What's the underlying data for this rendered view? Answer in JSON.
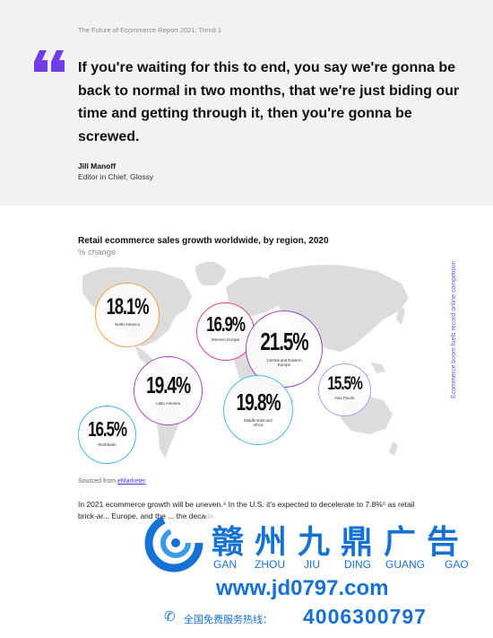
{
  "quote_section": {
    "report_label": "The Future of Ecommerce Report 2021: Trend 1",
    "quote": "If you're waiting for this to end, you say we're gonna be back to normal in two months, that we're just biding our time and getting through it, then you're gonna be screwed.",
    "author_name": "Jill Manoff",
    "author_role": "Editor in Chief, Glossy",
    "quote_icon": "quote-mark-icon",
    "accent_color": "#6f3ee8"
  },
  "chart_data": {
    "type": "bubble-map",
    "title": "Retail ecommerce sales growth worldwide, by region, 2020",
    "subtitle": "% change",
    "unit": "%",
    "series": [
      {
        "region": "North America",
        "value": 18.1,
        "label": "18.1%",
        "color": "#f5a447"
      },
      {
        "region": "Western Europe",
        "value": 16.9,
        "label": "16.9%",
        "color": "#e63c8c"
      },
      {
        "region": "Central and Eastern Europe",
        "value": 21.5,
        "label": "21.5%",
        "color": "#8e44c9"
      },
      {
        "region": "Latin America",
        "value": 19.4,
        "label": "19.4%",
        "color": "#a63fb9"
      },
      {
        "region": "Middle East and Africa",
        "value": 19.8,
        "label": "19.8%",
        "color": "#45b8e6"
      },
      {
        "region": "Asia Pacific",
        "value": 15.5,
        "label": "15.5%",
        "color": "#b59be8"
      },
      {
        "region": "Worldwide",
        "value": 16.5,
        "label": "16.5%",
        "color": "#45b8e6"
      }
    ]
  },
  "side_text": "Ecommerce boom fuels record online competition",
  "source": {
    "prefix": "Sourced from",
    "link": "eMarketer"
  },
  "body_text": "In 2021 ecommerce growth will be uneven.⁴ In the U.S. it's expected to decelerate to 7.8%⁵ as retail brick-ar... Europe, and the ... the decade.",
  "watermark": {
    "chinese": "赣州九鼎广告",
    "pinyin": [
      "GAN",
      "ZHOU",
      "JIU",
      "DING",
      "GUANG",
      "GAO"
    ],
    "url": "www.jd0797.com",
    "hotline_label": "全国免费服务热线：",
    "hotline_number": "4006300797",
    "logo_icon": "swirl-logo-icon",
    "phone_icon": "phone-icon",
    "color": "#1671d4"
  }
}
